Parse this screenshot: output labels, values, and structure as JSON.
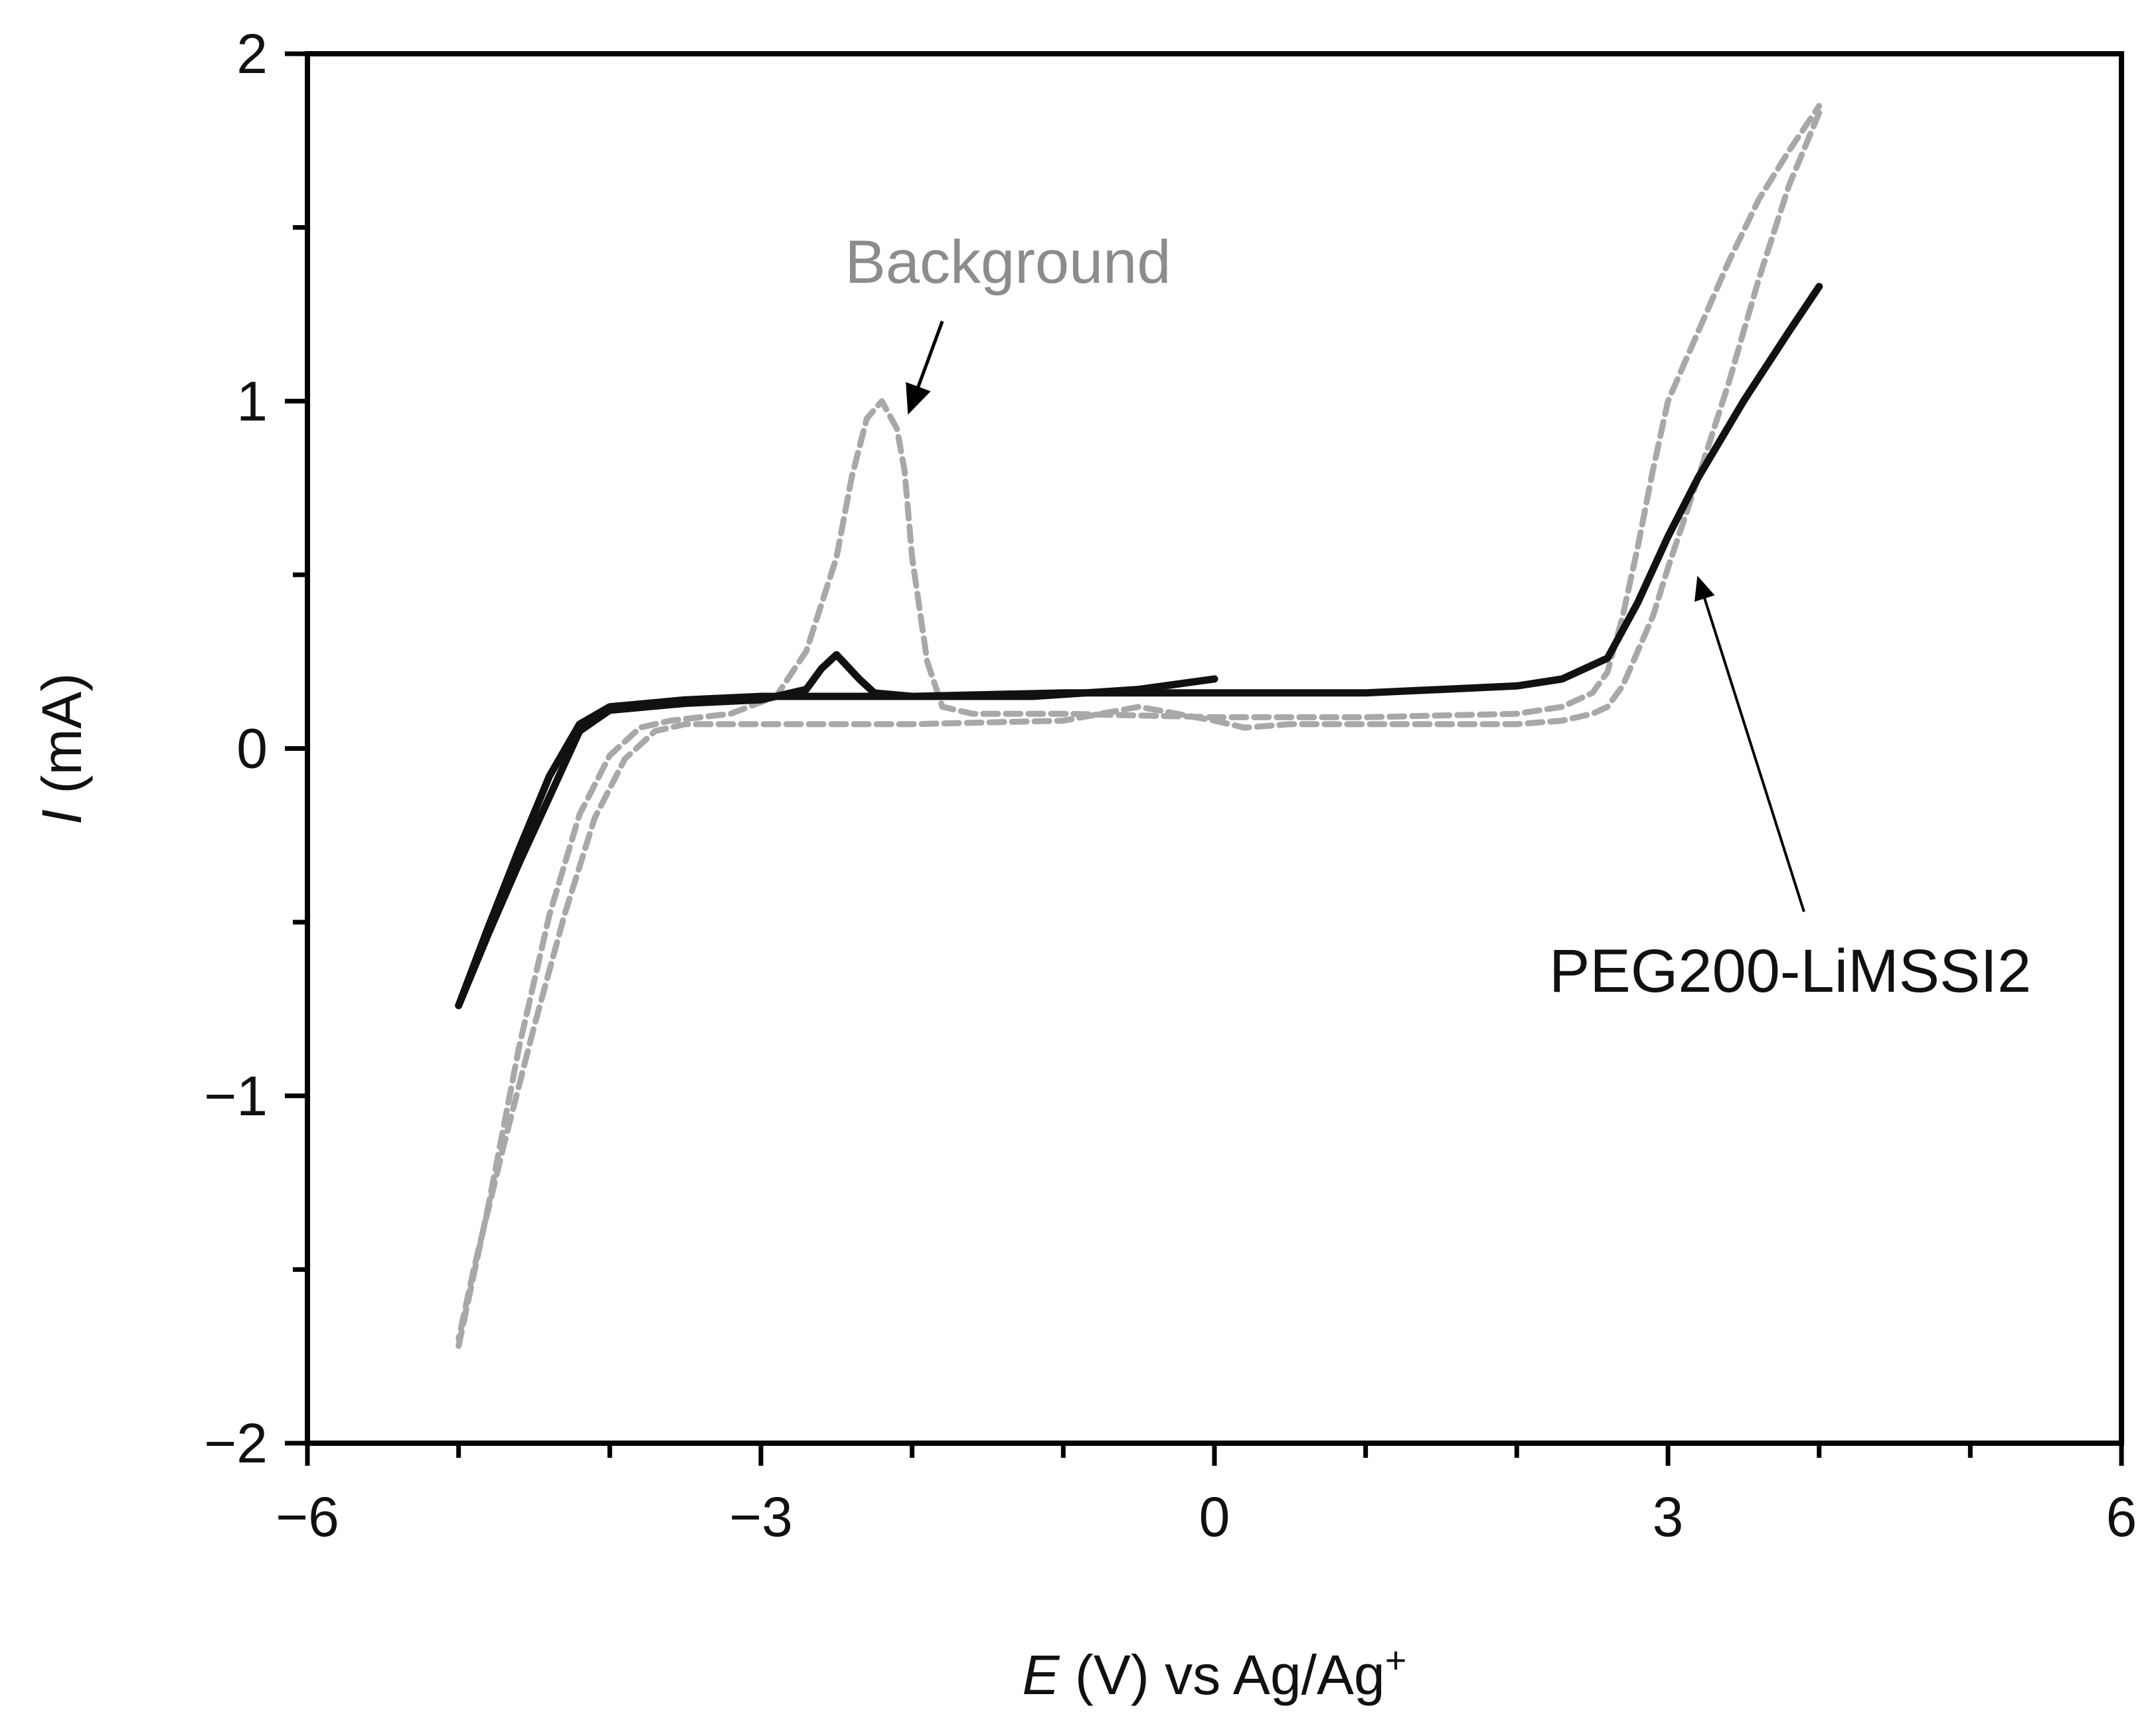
{
  "chart_data": {
    "type": "line",
    "title": "",
    "xlabel": {
      "italic_symbol": "E",
      "rest": " (V) vs Ag/Ag",
      "superscript": "+"
    },
    "ylabel": {
      "italic_symbol": "I",
      "rest": " (mA)"
    },
    "xlim": [
      -6,
      6
    ],
    "ylim": [
      -2,
      2
    ],
    "x_ticks": [
      {
        "value": -6,
        "label": "−6"
      },
      {
        "value": -3,
        "label": "−3"
      },
      {
        "value": 0,
        "label": "0"
      },
      {
        "value": 3,
        "label": "3"
      },
      {
        "value": 6,
        "label": "6"
      }
    ],
    "y_ticks": [
      {
        "value": -2,
        "label": "−2"
      },
      {
        "value": -1,
        "label": "−1"
      },
      {
        "value": 0,
        "label": "0"
      },
      {
        "value": 1,
        "label": "1"
      },
      {
        "value": 2,
        "label": "2"
      }
    ],
    "x_minor_step": 1,
    "y_minor_step": 0.5,
    "grid": false,
    "colors": {
      "axis": "#000000",
      "sample": "#111111",
      "background": "#a8a8a8",
      "annotation_text_background": "#8c8c8c"
    },
    "series": [
      {
        "name": "PEG200-LiMSSI2",
        "style": "solid",
        "color": "#111111",
        "paths": [
          {
            "x": [
              0.0,
              -0.5,
              -1.2,
              -2.0,
              -2.25,
              -2.35,
              -2.5,
              -2.6,
              -2.7,
              -3.0,
              -3.5,
              -4.0,
              -4.2,
              -4.4,
              -4.6,
              -4.8,
              -5.0
            ],
            "y": [
              0.2,
              0.17,
              0.15,
              0.15,
              0.16,
              0.2,
              0.27,
              0.23,
              0.17,
              0.14,
              0.13,
              0.11,
              0.05,
              -0.14,
              -0.33,
              -0.53,
              -0.74
            ]
          },
          {
            "x": [
              -5.0,
              -4.8,
              -4.6,
              -4.4,
              -4.2,
              -4.0,
              -3.5,
              -3.0,
              -2.0,
              -1.0,
              0.0,
              1.0,
              2.0,
              2.3,
              2.6,
              2.8,
              3.0,
              3.2,
              3.5,
              3.8,
              4.0
            ],
            "y": [
              -0.74,
              -0.51,
              -0.29,
              -0.08,
              0.07,
              0.12,
              0.14,
              0.15,
              0.15,
              0.16,
              0.16,
              0.16,
              0.18,
              0.2,
              0.26,
              0.42,
              0.61,
              0.78,
              1.0,
              1.2,
              1.33
            ]
          }
        ]
      },
      {
        "name": "Background",
        "style": "dashed",
        "color": "#a8a8a8",
        "paths": [
          {
            "x": [
              -5.0,
              -4.8,
              -4.6,
              -4.4,
              -4.2,
              -4.0,
              -3.8,
              -3.6,
              -3.2,
              -2.9,
              -2.7,
              -2.5,
              -2.4,
              -2.3,
              -2.2,
              -2.1,
              -2.05,
              -2.0,
              -1.9,
              -1.8,
              -1.6,
              -1.0,
              0.0,
              1.0,
              2.0,
              2.3,
              2.5,
              2.6,
              2.7,
              2.8,
              2.9,
              3.0,
              3.2,
              3.4,
              3.6,
              3.8,
              4.0
            ],
            "y": [
              -1.72,
              -1.31,
              -0.86,
              -0.48,
              -0.19,
              -0.02,
              0.06,
              0.08,
              0.1,
              0.15,
              0.28,
              0.55,
              0.78,
              0.95,
              1.0,
              0.92,
              0.8,
              0.55,
              0.25,
              0.12,
              0.1,
              0.1,
              0.09,
              0.09,
              0.1,
              0.12,
              0.16,
              0.22,
              0.38,
              0.58,
              0.8,
              1.0,
              1.2,
              1.4,
              1.58,
              1.72,
              1.85
            ]
          },
          {
            "x": [
              4.0,
              3.8,
              3.6,
              3.4,
              3.2,
              3.0,
              2.9,
              2.8,
              2.7,
              2.6,
              2.5,
              2.3,
              2.0,
              1.0,
              0.5,
              0.2,
              0.0,
              -0.5,
              -1.0,
              -2.0,
              -3.0,
              -3.5,
              -3.7,
              -3.9,
              -4.1,
              -4.3,
              -4.5,
              -4.7,
              -4.9,
              -5.0
            ],
            "y": [
              1.83,
              1.62,
              1.35,
              1.05,
              0.78,
              0.52,
              0.38,
              0.28,
              0.18,
              0.12,
              0.1,
              0.08,
              0.07,
              0.07,
              0.07,
              0.06,
              0.08,
              0.12,
              0.08,
              0.07,
              0.07,
              0.07,
              0.05,
              -0.03,
              -0.2,
              -0.48,
              -0.8,
              -1.14,
              -1.5,
              -1.7
            ]
          }
        ]
      }
    ],
    "annotations": [
      {
        "text": "Background",
        "target_series": "Background",
        "arrow_from": [
          -1.8,
          1.23
        ],
        "arrow_to": [
          -2.02,
          0.97
        ]
      },
      {
        "text": "PEG200-LiMSSI2",
        "target_series": "PEG200-LiMSSI2",
        "arrow_from": [
          3.9,
          -0.47
        ],
        "arrow_to": [
          3.2,
          0.49
        ]
      }
    ]
  }
}
